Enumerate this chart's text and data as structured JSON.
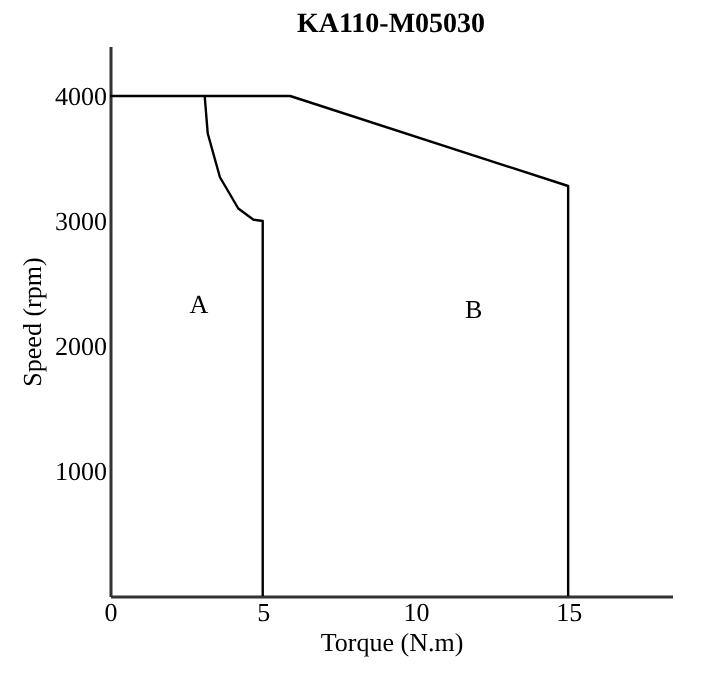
{
  "chart_data": {
    "type": "line",
    "title": "KA110-M05030",
    "xlabel": "Torque (N.m)",
    "ylabel": "Speed (rpm)",
    "xlim": [
      0,
      18.4
    ],
    "ylim": [
      0,
      4400
    ],
    "xticks": [
      0,
      5,
      10,
      15
    ],
    "yticks": [
      1000,
      2000,
      3000,
      4000
    ],
    "grid": false,
    "marker": "none",
    "line_style": "solid",
    "series": [
      {
        "x": [
          0,
          5.9,
          15,
          15
        ],
        "values": [
          4000,
          4000,
          3280,
          0
        ],
        "color": "#000000"
      },
      {
        "x": [
          3.1,
          3.2,
          3.6,
          4.2,
          4.7,
          5,
          5
        ],
        "values": [
          4000,
          3700,
          3350,
          3100,
          3010,
          3000,
          0
        ],
        "color": "#000000"
      }
    ],
    "annotations": [
      "A",
      "B"
    ]
  }
}
